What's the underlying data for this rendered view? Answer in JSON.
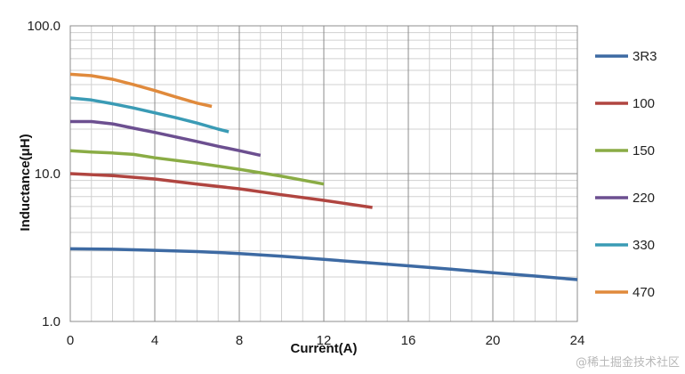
{
  "chart_data": {
    "type": "line",
    "title": "",
    "xlabel": "Current(A)",
    "ylabel": "Inductance(μH)",
    "xlim": [
      0,
      24
    ],
    "ylim": [
      1,
      100
    ],
    "y_scale": "log",
    "x_ticks": [
      0,
      4,
      8,
      12,
      16,
      20,
      24
    ],
    "x_tick_labels": [
      "0",
      "4",
      "8",
      "12",
      "16",
      "20",
      "24"
    ],
    "y_ticks": [
      1,
      10,
      100
    ],
    "y_tick_labels": [
      "1.0",
      "10.0",
      "100.0"
    ],
    "grid": true,
    "legend_position": "right",
    "series": [
      {
        "name": "3R3",
        "color": "#3d6aa3",
        "x": [
          0,
          2,
          4,
          6,
          8,
          10,
          12,
          14,
          16,
          18,
          20,
          22,
          24
        ],
        "y": [
          3.1,
          3.08,
          3.03,
          2.97,
          2.88,
          2.76,
          2.63,
          2.5,
          2.38,
          2.26,
          2.14,
          2.03,
          1.92
        ]
      },
      {
        "name": "100",
        "color": "#b04540",
        "x": [
          0,
          2,
          4,
          6,
          8,
          10,
          12,
          14.3
        ],
        "y": [
          10.0,
          9.7,
          9.2,
          8.5,
          7.9,
          7.2,
          6.6,
          5.9
        ]
      },
      {
        "name": "150",
        "color": "#8aac45",
        "x": [
          0,
          1,
          2,
          3,
          4,
          6,
          8,
          10,
          12
        ],
        "y": [
          14.3,
          14.0,
          13.8,
          13.5,
          12.8,
          11.8,
          10.7,
          9.6,
          8.5
        ]
      },
      {
        "name": "220",
        "color": "#6c4f90",
        "x": [
          0,
          1,
          2,
          3,
          4,
          5,
          6,
          7,
          8,
          9
        ],
        "y": [
          22.5,
          22.5,
          21.7,
          20.3,
          19.0,
          17.7,
          16.5,
          15.3,
          14.3,
          13.3
        ]
      },
      {
        "name": "330",
        "color": "#3a9bb5",
        "x": [
          0,
          1,
          2,
          3,
          4,
          5,
          6,
          7,
          7.5
        ],
        "y": [
          32.5,
          31.5,
          29.7,
          27.8,
          25.8,
          23.9,
          22.0,
          20.0,
          19.2
        ]
      },
      {
        "name": "470",
        "color": "#e08a3c",
        "x": [
          0,
          1,
          2,
          3,
          4,
          5,
          6,
          6.7
        ],
        "y": [
          47.0,
          46.0,
          43.5,
          40.0,
          36.5,
          33.0,
          30.0,
          28.5
        ]
      }
    ]
  },
  "watermark": "@稀土掘金技术社区"
}
